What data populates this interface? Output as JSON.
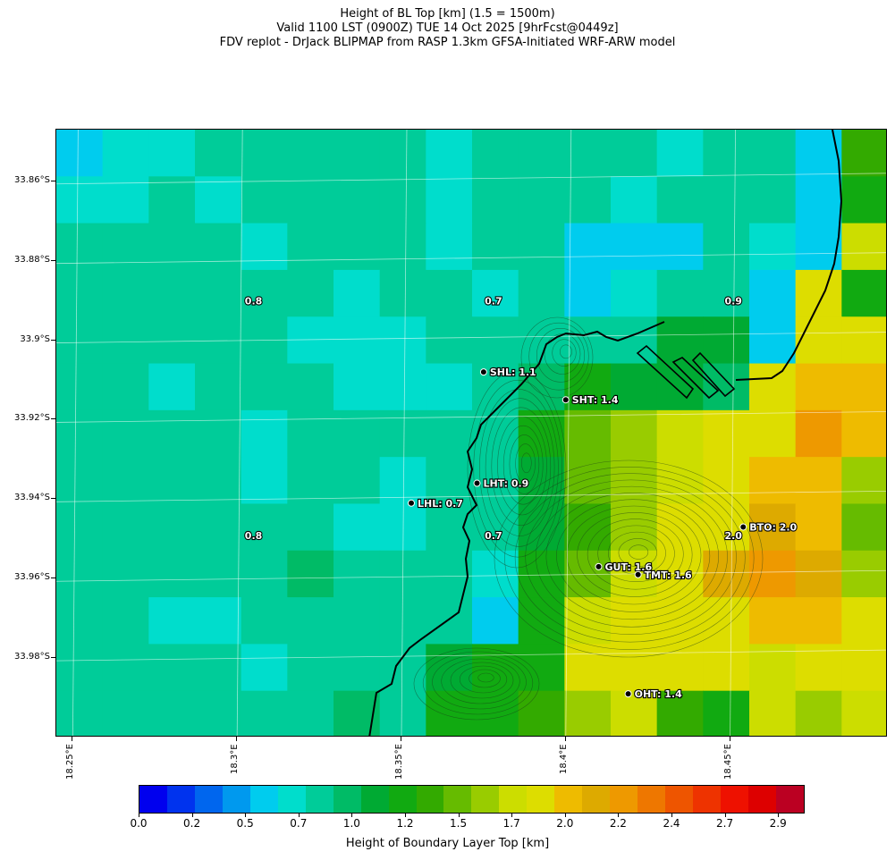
{
  "title": {
    "line1": "Height of BL Top [km] (1.5 = 1500m)",
    "line2": "Valid 1100 LST (0900Z) TUE 14 Oct 2025 [9hrFcst@0449z]",
    "line3": "FDV replot - DrJack BLIPMAP from RASP 1.3km GFSA-Initiated WRF-ARW model"
  },
  "axes": {
    "lat_labels": [
      "33.86°S",
      "33.88°S",
      "33.9°S",
      "33.92°S",
      "33.94°S",
      "33.96°S",
      "33.98°S"
    ],
    "lat_values": [
      -33.86,
      -33.88,
      -33.9,
      -33.92,
      -33.94,
      -33.96,
      -33.98
    ],
    "lon_labels": [
      "18.25°E",
      "18.3°E",
      "18.35°E",
      "18.4°E",
      "18.45°E"
    ],
    "lon_values": [
      18.25,
      18.3,
      18.35,
      18.4,
      18.45
    ]
  },
  "stations": [
    {
      "label": "SHL: 1.1",
      "lon": 18.375,
      "lat": -33.908
    },
    {
      "label": "SHT: 1.4",
      "lon": 18.4,
      "lat": -33.915
    },
    {
      "label": "LHT: 0.9",
      "lon": 18.373,
      "lat": -33.936
    },
    {
      "label": "LHL: 0.7",
      "lon": 18.353,
      "lat": -33.941
    },
    {
      "label": "GUT: 1.6",
      "lon": 18.41,
      "lat": -33.957
    },
    {
      "label": "TMT: 1.6",
      "lon": 18.422,
      "lat": -33.959
    },
    {
      "label": "BTO: 2.0",
      "lon": 18.454,
      "lat": -33.947
    },
    {
      "label": "OHT: 1.4",
      "lon": 18.419,
      "lat": -33.989
    }
  ],
  "grid_value_labels": [
    {
      "text": "0.8",
      "lon": 18.305,
      "lat": -33.891
    },
    {
      "text": "0.7",
      "lon": 18.378,
      "lat": -33.891
    },
    {
      "text": "0.9",
      "lon": 18.451,
      "lat": -33.891
    },
    {
      "text": "0.8",
      "lon": 18.305,
      "lat": -33.95
    },
    {
      "text": "0.7",
      "lon": 18.378,
      "lat": -33.95
    },
    {
      "text": "2.0",
      "lon": 18.451,
      "lat": -33.95
    }
  ],
  "colorbar": {
    "title": "Height of Boundary Layer Top [km]",
    "tick_labels": [
      "0.0",
      "0.2",
      "0.5",
      "0.7",
      "1.0",
      "1.2",
      "1.5",
      "1.7",
      "2.0",
      "2.2",
      "2.4",
      "2.7",
      "2.9"
    ],
    "colors": [
      "#0000ee",
      "#0033ee",
      "#0066ee",
      "#0099ee",
      "#00ccee",
      "#00ddcc",
      "#00cc99",
      "#00bb66",
      "#00aa33",
      "#11aa11",
      "#33aa00",
      "#66bb00",
      "#99cc00",
      "#ccdd00",
      "#dddd00",
      "#eebb00",
      "#ddaa00",
      "#ee9900",
      "#ee7700",
      "#ee5500",
      "#ee3300",
      "#ee1100",
      "#dd0000",
      "#bb0022"
    ]
  },
  "chart_data": {
    "type": "heatmap",
    "title": "Height of BL Top [km] (1.5 = 1500m)",
    "xlabel": "",
    "ylabel": "",
    "colorbar_label": "Height of Boundary Layer Top [km]",
    "xlim": [
      18.245,
      18.498
    ],
    "ylim": [
      -34.0,
      -33.847
    ],
    "value_range": [
      0.0,
      2.9
    ],
    "grid_cols": 18,
    "grid_rows": 13,
    "values": [
      [
        0.6,
        0.7,
        0.7,
        0.8,
        0.8,
        0.8,
        0.8,
        0.8,
        0.7,
        0.8,
        0.8,
        0.8,
        0.8,
        0.7,
        0.8,
        0.8,
        0.6,
        1.3
      ],
      [
        0.7,
        0.7,
        0.8,
        0.7,
        0.8,
        0.8,
        0.8,
        0.8,
        0.7,
        0.8,
        0.8,
        0.8,
        0.7,
        0.8,
        0.8,
        0.8,
        0.5,
        1.2
      ],
      [
        0.8,
        0.8,
        0.8,
        0.8,
        0.7,
        0.8,
        0.8,
        0.8,
        0.7,
        0.8,
        0.8,
        0.6,
        0.6,
        0.6,
        0.8,
        0.7,
        0.5,
        1.6
      ],
      [
        0.8,
        0.8,
        0.8,
        0.8,
        0.8,
        0.8,
        0.7,
        0.8,
        0.8,
        0.7,
        0.8,
        0.6,
        0.7,
        0.8,
        0.8,
        0.5,
        1.7,
        1.1
      ],
      [
        0.8,
        0.8,
        0.8,
        0.8,
        0.8,
        0.7,
        0.7,
        0.7,
        0.8,
        0.8,
        0.8,
        0.8,
        0.8,
        1.0,
        1.0,
        0.5,
        1.7,
        1.8
      ],
      [
        0.8,
        0.8,
        0.7,
        0.8,
        0.8,
        0.8,
        0.7,
        0.7,
        0.7,
        0.8,
        0.9,
        1.1,
        1.0,
        1.0,
        0.9,
        1.8,
        1.9,
        1.9
      ],
      [
        0.8,
        0.8,
        0.8,
        0.8,
        0.7,
        0.8,
        0.8,
        0.8,
        0.8,
        0.8,
        1.1,
        1.4,
        1.5,
        1.6,
        1.7,
        1.8,
        2.1,
        1.9
      ],
      [
        0.8,
        0.8,
        0.8,
        0.8,
        0.7,
        0.8,
        0.8,
        0.7,
        0.8,
        0.8,
        1.0,
        1.4,
        1.5,
        1.6,
        1.7,
        1.9,
        1.9,
        1.5
      ],
      [
        0.8,
        0.8,
        0.8,
        0.8,
        0.8,
        0.8,
        0.7,
        0.7,
        0.8,
        0.8,
        1.0,
        1.3,
        1.5,
        1.7,
        1.8,
        2.0,
        1.9,
        1.4
      ],
      [
        0.8,
        0.8,
        0.8,
        0.8,
        0.8,
        0.9,
        0.8,
        0.8,
        0.8,
        0.7,
        1.2,
        1.4,
        1.6,
        1.8,
        2.0,
        2.1,
        2.0,
        1.5
      ],
      [
        0.8,
        0.8,
        0.7,
        0.7,
        0.8,
        0.8,
        0.8,
        0.8,
        0.8,
        0.6,
        1.2,
        1.6,
        1.7,
        1.8,
        1.8,
        1.9,
        1.9,
        1.7
      ],
      [
        0.8,
        0.8,
        0.8,
        0.8,
        0.7,
        0.8,
        0.8,
        0.8,
        1.0,
        1.1,
        1.2,
        1.7,
        1.7,
        1.7,
        1.7,
        1.6,
        1.7,
        1.7
      ],
      [
        0.8,
        0.8,
        0.8,
        0.8,
        0.8,
        0.8,
        0.9,
        0.8,
        1.1,
        1.1,
        1.3,
        1.5,
        1.6,
        1.3,
        1.2,
        1.6,
        1.5,
        1.6
      ]
    ]
  }
}
